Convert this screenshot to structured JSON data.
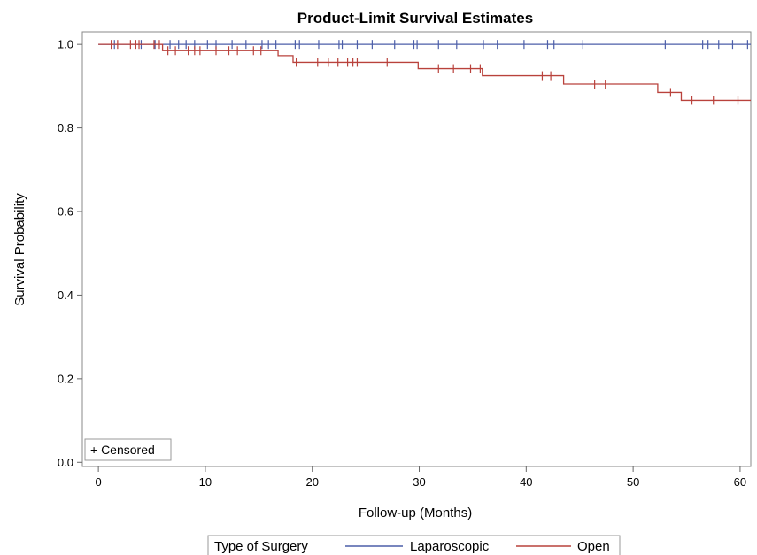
{
  "chart_data": {
    "type": "line",
    "step": true,
    "title": "Product-Limit Survival Estimates",
    "xlabel": "Follow-up (Months)",
    "ylabel": "Survival Probability",
    "xlim": [
      -1.5,
      61
    ],
    "ylim": [
      -0.01,
      1.03
    ],
    "x_ticks": [
      0,
      10,
      20,
      30,
      40,
      50,
      60
    ],
    "x_tick_labels": [
      "0",
      "10",
      "20",
      "30",
      "40",
      "50",
      "60"
    ],
    "y_ticks": [
      0,
      0.2,
      0.4,
      0.6,
      0.8,
      1.0
    ],
    "y_tick_labels": [
      "0.0",
      "0.2",
      "0.4",
      "0.6",
      "0.8",
      "1.0"
    ],
    "grid": false,
    "censored_label": "+ Censored",
    "legend": {
      "title": "Type of Surgery",
      "placement": "bottom"
    },
    "series": [
      {
        "name": "Laparoscopic",
        "color": "#4c5ea8",
        "x": [
          0,
          61
        ],
        "y": [
          1.0,
          1.0
        ],
        "censored_x": [
          1.5,
          4.0,
          5.3,
          6.7,
          7.5,
          8.2,
          9.0,
          10.2,
          11.0,
          12.5,
          13.8,
          15.3,
          15.9,
          16.6,
          18.4,
          18.8,
          20.6,
          22.5,
          22.8,
          24.2,
          25.6,
          27.7,
          29.5,
          29.8,
          31.8,
          33.5,
          36.0,
          37.3,
          39.8,
          42.0,
          42.6,
          45.3,
          53.0,
          56.5,
          57.0,
          58.0,
          59.3,
          60.7
        ],
        "censored_y": [
          1.0,
          1.0,
          1.0,
          1.0,
          1.0,
          1.0,
          1.0,
          1.0,
          1.0,
          1.0,
          1.0,
          1.0,
          1.0,
          1.0,
          1.0,
          1.0,
          1.0,
          1.0,
          1.0,
          1.0,
          1.0,
          1.0,
          1.0,
          1.0,
          1.0,
          1.0,
          1.0,
          1.0,
          1.0,
          1.0,
          1.0,
          1.0,
          1.0,
          1.0,
          1.0,
          1.0,
          1.0,
          1.0
        ]
      },
      {
        "name": "Open",
        "color": "#b9423c",
        "x": [
          0,
          6.0,
          6.0,
          16.8,
          16.8,
          18.2,
          18.2,
          29.9,
          29.9,
          35.9,
          35.9,
          43.5,
          43.5,
          52.3,
          52.3,
          54.5,
          54.5,
          61
        ],
        "y": [
          1.0,
          1.0,
          0.985,
          0.985,
          0.973,
          0.973,
          0.957,
          0.957,
          0.942,
          0.942,
          0.925,
          0.925,
          0.905,
          0.905,
          0.885,
          0.885,
          0.866,
          0.866
        ],
        "censored_x": [
          1.2,
          1.8,
          3.0,
          3.5,
          3.8,
          5.2,
          5.7,
          6.5,
          7.2,
          8.4,
          9.0,
          9.5,
          11.0,
          12.2,
          13.0,
          14.5,
          15.2,
          18.5,
          20.5,
          21.5,
          22.4,
          23.3,
          23.8,
          24.2,
          27.0,
          31.8,
          33.2,
          34.8,
          35.7,
          41.5,
          42.3,
          46.4,
          47.4,
          53.5,
          55.5,
          57.5,
          59.8
        ],
        "censored_y": [
          1.0,
          1.0,
          1.0,
          1.0,
          1.0,
          1.0,
          1.0,
          0.985,
          0.985,
          0.985,
          0.985,
          0.985,
          0.985,
          0.985,
          0.985,
          0.985,
          0.985,
          0.957,
          0.957,
          0.957,
          0.957,
          0.957,
          0.957,
          0.957,
          0.957,
          0.942,
          0.942,
          0.942,
          0.942,
          0.925,
          0.925,
          0.905,
          0.905,
          0.885,
          0.866,
          0.866,
          0.866
        ]
      }
    ]
  }
}
